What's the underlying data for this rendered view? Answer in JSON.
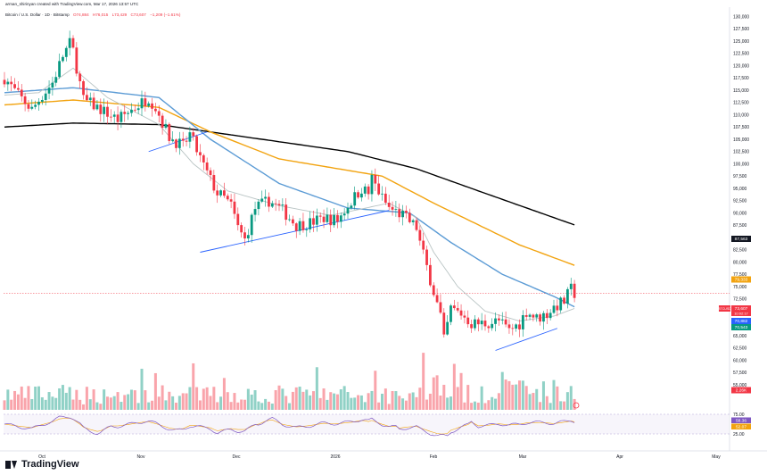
{
  "header": {
    "credit": "arman_shirinyan created with TradingView.com, Mar 17, 2026 13:57 UTC",
    "symbol": "Bitcoin / U.S. Dollar · 1D · Bitstamp",
    "o": "O74,884",
    "h": "H76,015",
    "l": "L73,429",
    "c": "C73,607",
    "change": "−1,209 (−1.61%)"
  },
  "brand": {
    "name": "TradingView"
  },
  "colors": {
    "up": "#089981",
    "down": "#f23645",
    "ma_black": "#000000",
    "ma_orange": "#f2a30f",
    "ma_blue": "#5b9bd5",
    "ma_grey": "#b9c4c4",
    "trendline": "#2962ff",
    "rsi": "#7e57c2"
  },
  "chart_data": {
    "type": "candlestick",
    "title": "Bitcoin / U.S. Dollar · 1D · Bitstamp",
    "xlabel": "",
    "ylabel": "",
    "ylim": [
      51000,
      131500
    ],
    "x_ticks": [
      "Oct",
      "Nov",
      "Dec",
      "2026",
      "Feb",
      "Mar",
      "Apr",
      "May"
    ],
    "y_ticks": [
      "130,000",
      "127,500",
      "125,000",
      "122,500",
      "120,000",
      "117,500",
      "115,000",
      "112,500",
      "110,000",
      "107,500",
      "105,000",
      "102,500",
      "100,000",
      "97,500",
      "95,000",
      "92,500",
      "90,000",
      "87,500",
      "85,000",
      "82,500",
      "80,000",
      "77,500",
      "75,000",
      "72,500",
      "70,000",
      "67,500",
      "65,000",
      "62,500",
      "60,000",
      "57,500",
      "55,000"
    ],
    "close_path": [
      [
        0,
        117500
      ],
      [
        4,
        114000
      ],
      [
        8,
        111000
      ],
      [
        10,
        113000
      ],
      [
        14,
        116500
      ],
      [
        17,
        122000
      ],
      [
        19,
        124500
      ],
      [
        20,
        123000
      ],
      [
        23,
        113000
      ],
      [
        27,
        111500
      ],
      [
        33,
        109000
      ],
      [
        37,
        111000
      ],
      [
        42,
        113500
      ],
      [
        44,
        111500
      ],
      [
        48,
        105500
      ],
      [
        52,
        103500
      ],
      [
        54,
        106000
      ],
      [
        58,
        99500
      ],
      [
        62,
        94000
      ],
      [
        64,
        93000
      ],
      [
        66,
        91500
      ],
      [
        68,
        87000
      ],
      [
        70,
        84500
      ],
      [
        73,
        91000
      ],
      [
        77,
        92500
      ],
      [
        81,
        90500
      ],
      [
        85,
        87500
      ],
      [
        89,
        88000
      ],
      [
        93,
        89000
      ],
      [
        97,
        88500
      ],
      [
        100,
        91500
      ],
      [
        104,
        95000
      ],
      [
        106,
        94000
      ],
      [
        107,
        97000
      ],
      [
        110,
        93000
      ],
      [
        112,
        91000
      ],
      [
        116,
        89500
      ],
      [
        120,
        87000
      ],
      [
        121,
        84000
      ],
      [
        123,
        79000
      ],
      [
        125,
        74000
      ],
      [
        127,
        69000
      ],
      [
        128,
        64000
      ],
      [
        130,
        70500
      ],
      [
        133,
        69500
      ],
      [
        136,
        67500
      ],
      [
        140,
        67500
      ],
      [
        144,
        68000
      ],
      [
        147,
        66000
      ],
      [
        150,
        67500
      ],
      [
        152,
        70000
      ],
      [
        155,
        68500
      ],
      [
        158,
        69500
      ],
      [
        160,
        70800
      ],
      [
        163,
        72000
      ],
      [
        165,
        74500
      ],
      [
        166,
        73607
      ]
    ],
    "ma_lines": [
      {
        "name": "200 MA",
        "color": "#000000",
        "points": [
          [
            0,
            107500
          ],
          [
            20,
            108300
          ],
          [
            45,
            108000
          ],
          [
            70,
            105500
          ],
          [
            100,
            102500
          ],
          [
            120,
            99000
          ],
          [
            140,
            94000
          ],
          [
            166,
            87563
          ]
        ]
      },
      {
        "name": "100 MA",
        "color": "#f2a30f",
        "points": [
          [
            0,
            112000
          ],
          [
            20,
            113000
          ],
          [
            45,
            111500
          ],
          [
            60,
            106500
          ],
          [
            80,
            101000
          ],
          [
            110,
            97500
          ],
          [
            125,
            92000
          ],
          [
            150,
            83500
          ],
          [
            166,
            79333
          ]
        ]
      },
      {
        "name": "50 MA",
        "color": "#5b9bd5",
        "points": [
          [
            0,
            114500
          ],
          [
            20,
            115500
          ],
          [
            45,
            113500
          ],
          [
            60,
            105000
          ],
          [
            80,
            96000
          ],
          [
            100,
            91000
          ],
          [
            118,
            90000
          ],
          [
            130,
            84000
          ],
          [
            145,
            77500
          ],
          [
            160,
            73000
          ],
          [
            166,
            70882
          ]
        ]
      },
      {
        "name": "20 MA",
        "color": "#b9c4c4",
        "points": [
          [
            0,
            114000
          ],
          [
            10,
            114500
          ],
          [
            20,
            119500
          ],
          [
            30,
            113500
          ],
          [
            45,
            108000
          ],
          [
            55,
            100000
          ],
          [
            65,
            94500
          ],
          [
            80,
            91500
          ],
          [
            95,
            89500
          ],
          [
            112,
            92000
          ],
          [
            120,
            89000
          ],
          [
            125,
            82000
          ],
          [
            132,
            75000
          ],
          [
            140,
            70000
          ],
          [
            150,
            68000
          ],
          [
            160,
            69000
          ],
          [
            166,
            70543
          ]
        ]
      }
    ],
    "trendlines": [
      {
        "from": [
          42,
          102500
        ],
        "to": [
          59,
          106500
        ]
      },
      {
        "from": [
          57,
          82000
        ],
        "to": [
          112,
          90500
        ]
      },
      {
        "from": [
          143,
          62000
        ],
        "to": [
          161,
          66500
        ]
      }
    ],
    "price_labels": [
      {
        "value": "87,563",
        "y": 87563,
        "color": "#131722"
      },
      {
        "value": "79,333",
        "y": 79333,
        "color": "#f2a30f"
      },
      {
        "value": "73,607",
        "y": 73607,
        "color": "#f23645",
        "symbol": "BTCUSD",
        "countdown": "10:02:17"
      },
      {
        "value": "70,882",
        "y": 70882,
        "color": "#2962ff"
      },
      {
        "value": "70,543",
        "y": 70543,
        "color": "#089981"
      },
      {
        "value": "2.26K",
        "y": 56200,
        "color": "#f23645"
      }
    ],
    "rsi": {
      "ticks": [
        "75.00",
        "25.00"
      ],
      "labels": [
        {
          "value": "58.36",
          "color": "#7e57c2"
        },
        {
          "value": "52.07",
          "color": "#f2a30f"
        }
      ]
    }
  }
}
